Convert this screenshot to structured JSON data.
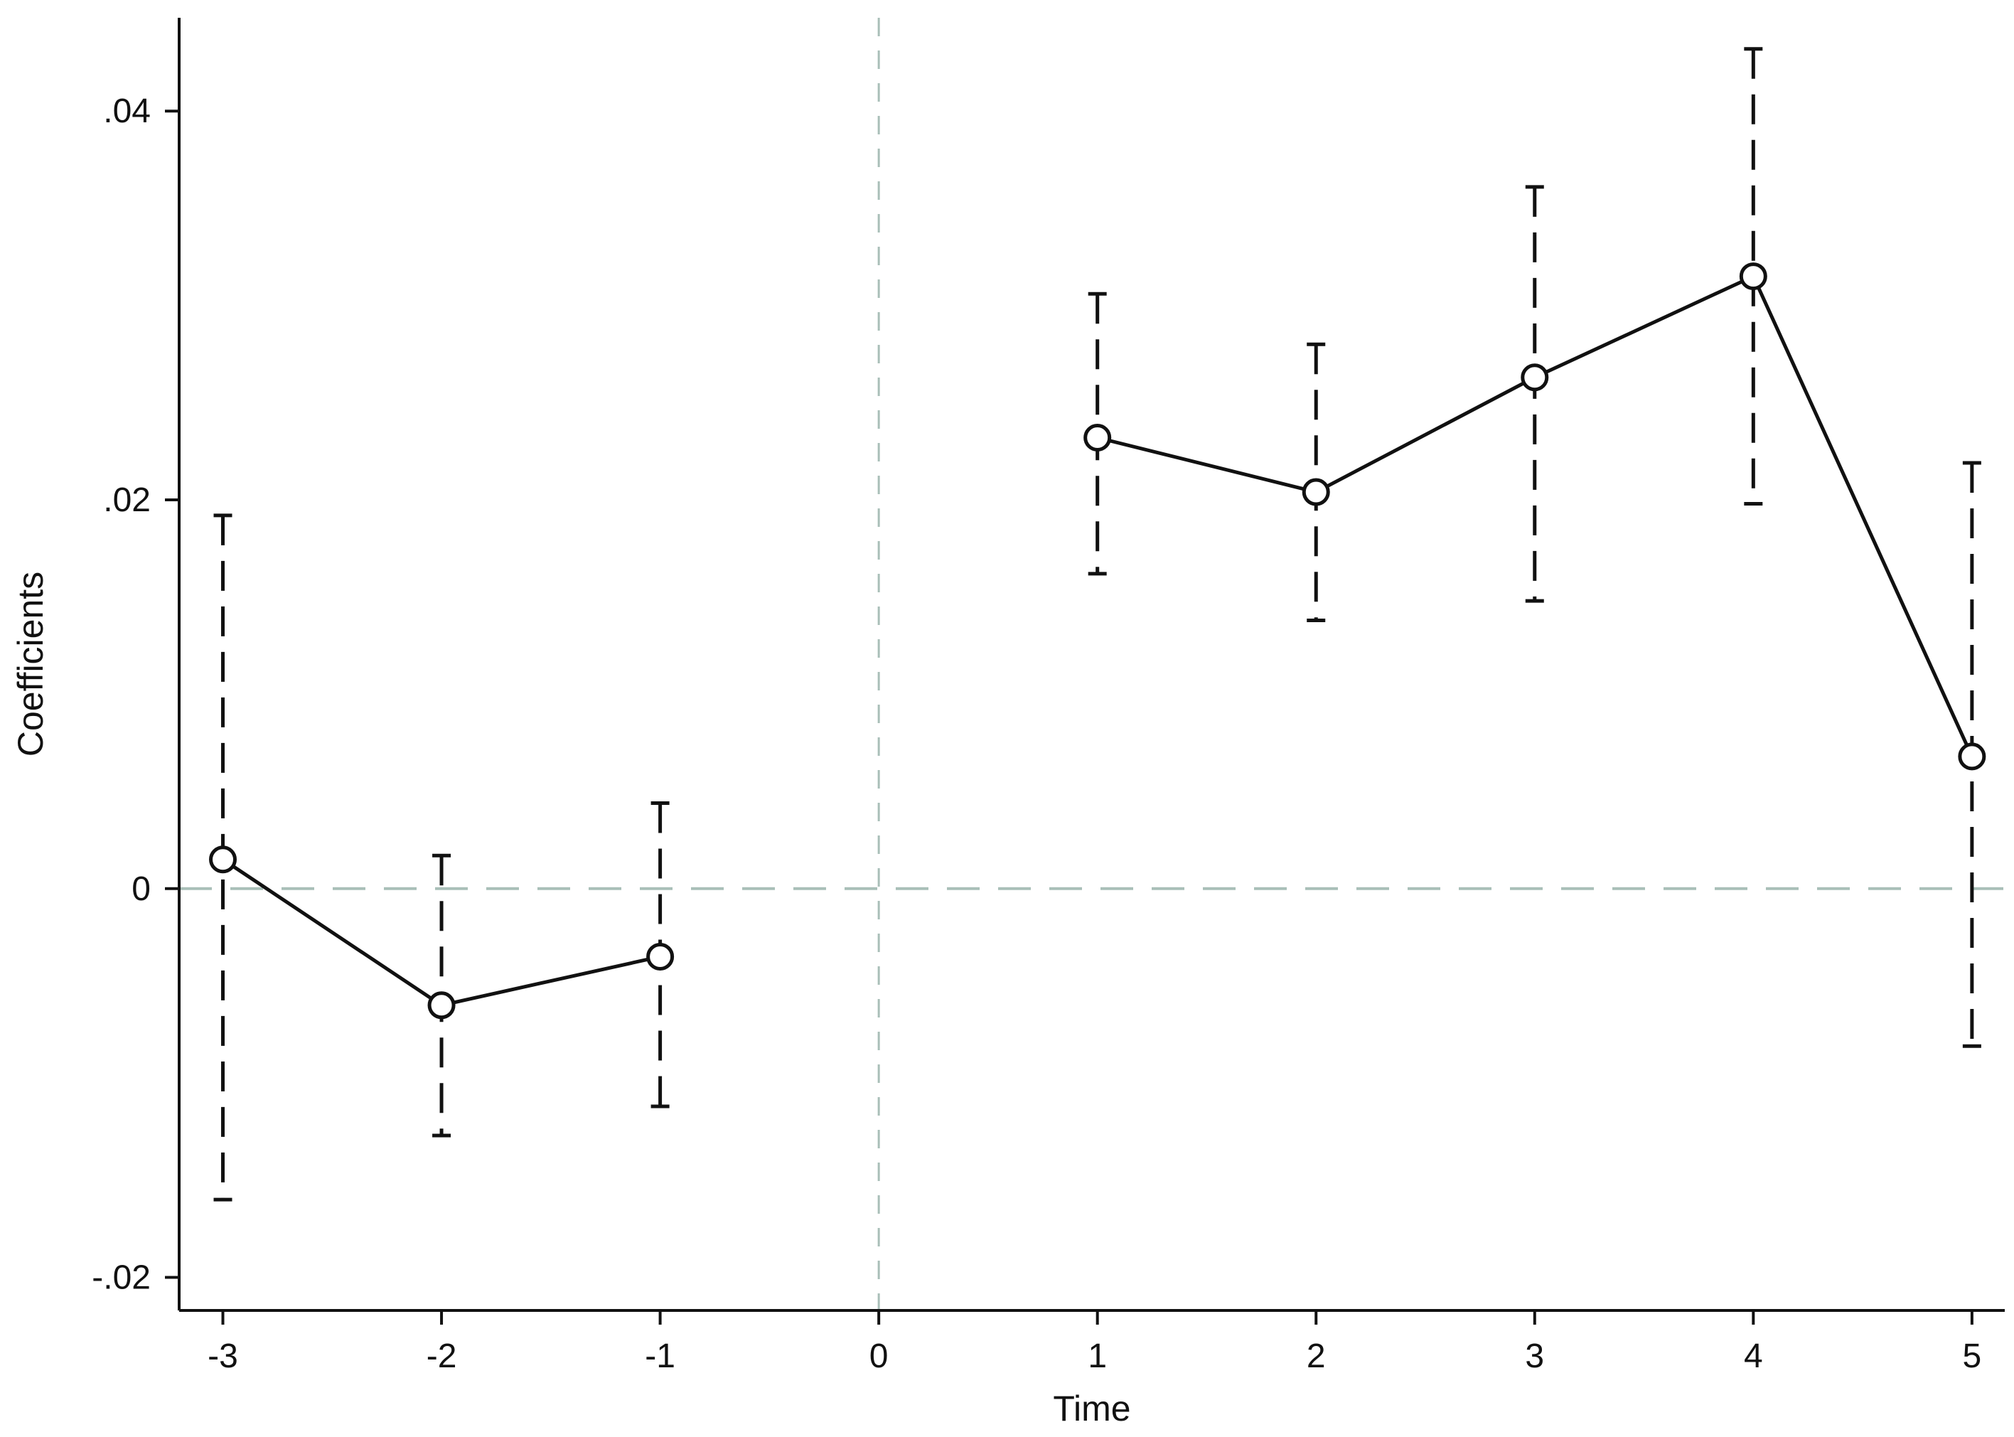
{
  "chart_data": {
    "type": "scatter",
    "title": "",
    "xlabel": "Time",
    "ylabel": "Coefficients",
    "xlim": [
      -3.2,
      5.15
    ],
    "ylim": [
      -0.0217,
      0.0448
    ],
    "x_ticks": [
      -3,
      -2,
      -1,
      0,
      1,
      2,
      3,
      4,
      5
    ],
    "y_ticks": [
      -0.02,
      0,
      0.02,
      0.04
    ],
    "x_tick_labels": [
      "-3",
      "-2",
      "-1",
      "0",
      "1",
      "2",
      "3",
      "4",
      "5"
    ],
    "y_tick_labels": [
      "-.02",
      "0",
      ".02",
      ".04"
    ],
    "grid": false,
    "reference_lines": [
      {
        "axis": "x",
        "value": 0,
        "style": "dashed",
        "color": "#a9bfb8"
      },
      {
        "axis": "y",
        "value": 0,
        "style": "dashed",
        "color": "#a9bfb8"
      }
    ],
    "series": [
      {
        "x": [
          -3,
          -2,
          -1
        ],
        "y": [
          0.0015,
          -0.006,
          -0.0035
        ],
        "ci_low": [
          -0.016,
          -0.0127,
          -0.0112
        ],
        "ci_high": [
          0.0192,
          0.0017,
          0.0044
        ]
      },
      {
        "x": [
          1,
          2,
          3,
          4,
          5
        ],
        "y": [
          0.0232,
          0.0204,
          0.0263,
          0.0315,
          0.0068
        ],
        "ci_low": [
          0.0162,
          0.0138,
          0.0148,
          0.0198,
          -0.0081
        ],
        "ci_high": [
          0.0306,
          0.028,
          0.0361,
          0.0432,
          0.0219
        ]
      }
    ],
    "colors": {
      "line": "#111111",
      "ci": "#111111",
      "reference": "#a9bfb8",
      "axis": "#111111"
    }
  }
}
